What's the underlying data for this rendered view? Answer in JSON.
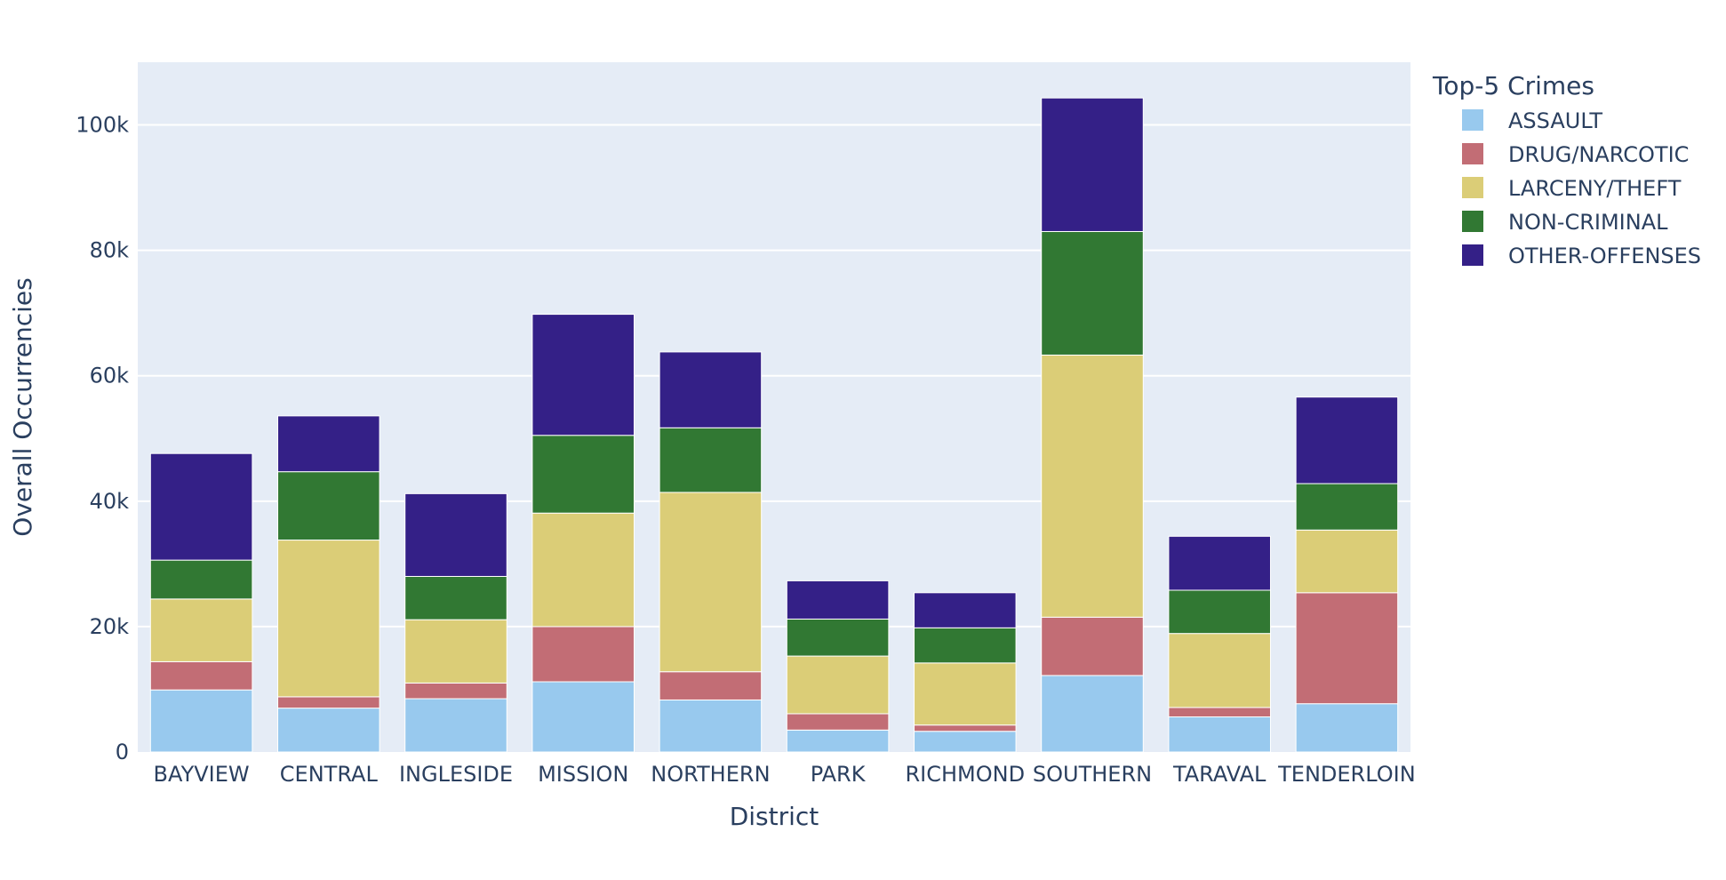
{
  "chart_data": {
    "type": "bar",
    "barmode": "stack",
    "xlabel": "District",
    "ylabel": "Overall Occurrencies",
    "ylim": [
      0,
      110000
    ],
    "y_ticks": [
      0,
      20000,
      40000,
      60000,
      80000,
      100000
    ],
    "y_tick_labels": [
      "0",
      "20k",
      "40k",
      "60k",
      "80k",
      "100k"
    ],
    "grid": true,
    "plot_background": "#e5ecf6",
    "legend": {
      "title": "Top-5 Crimes",
      "placement": "top-right"
    },
    "categories": [
      "BAYVIEW",
      "CENTRAL",
      "INGLESIDE",
      "MISSION",
      "NORTHERN",
      "PARK",
      "RICHMOND",
      "SOUTHERN",
      "TARAVAL",
      "TENDERLOIN"
    ],
    "series": [
      {
        "name": "ASSAULT",
        "color": "#98c9ee",
        "values": [
          9900,
          7000,
          8500,
          11200,
          8300,
          3500,
          3300,
          12200,
          5600,
          7700
        ]
      },
      {
        "name": "DRUG/NARCOTIC",
        "color": "#c26d75",
        "values": [
          4500,
          1800,
          2500,
          8800,
          4500,
          2600,
          1000,
          9300,
          1500,
          17700
        ]
      },
      {
        "name": "LARCENY/THEFT",
        "color": "#dbcd77",
        "values": [
          10000,
          25000,
          10100,
          18100,
          28600,
          9200,
          9900,
          41800,
          11800,
          10000
        ]
      },
      {
        "name": "NON-CRIMINAL",
        "color": "#317833",
        "values": [
          6200,
          10900,
          6900,
          12400,
          10300,
          5900,
          5600,
          19700,
          6900,
          7400
        ]
      },
      {
        "name": "OTHER-OFFENSES",
        "color": "#342087",
        "values": [
          17000,
          8900,
          13200,
          19300,
          12100,
          6100,
          5600,
          21300,
          8600,
          13800
        ]
      }
    ]
  }
}
